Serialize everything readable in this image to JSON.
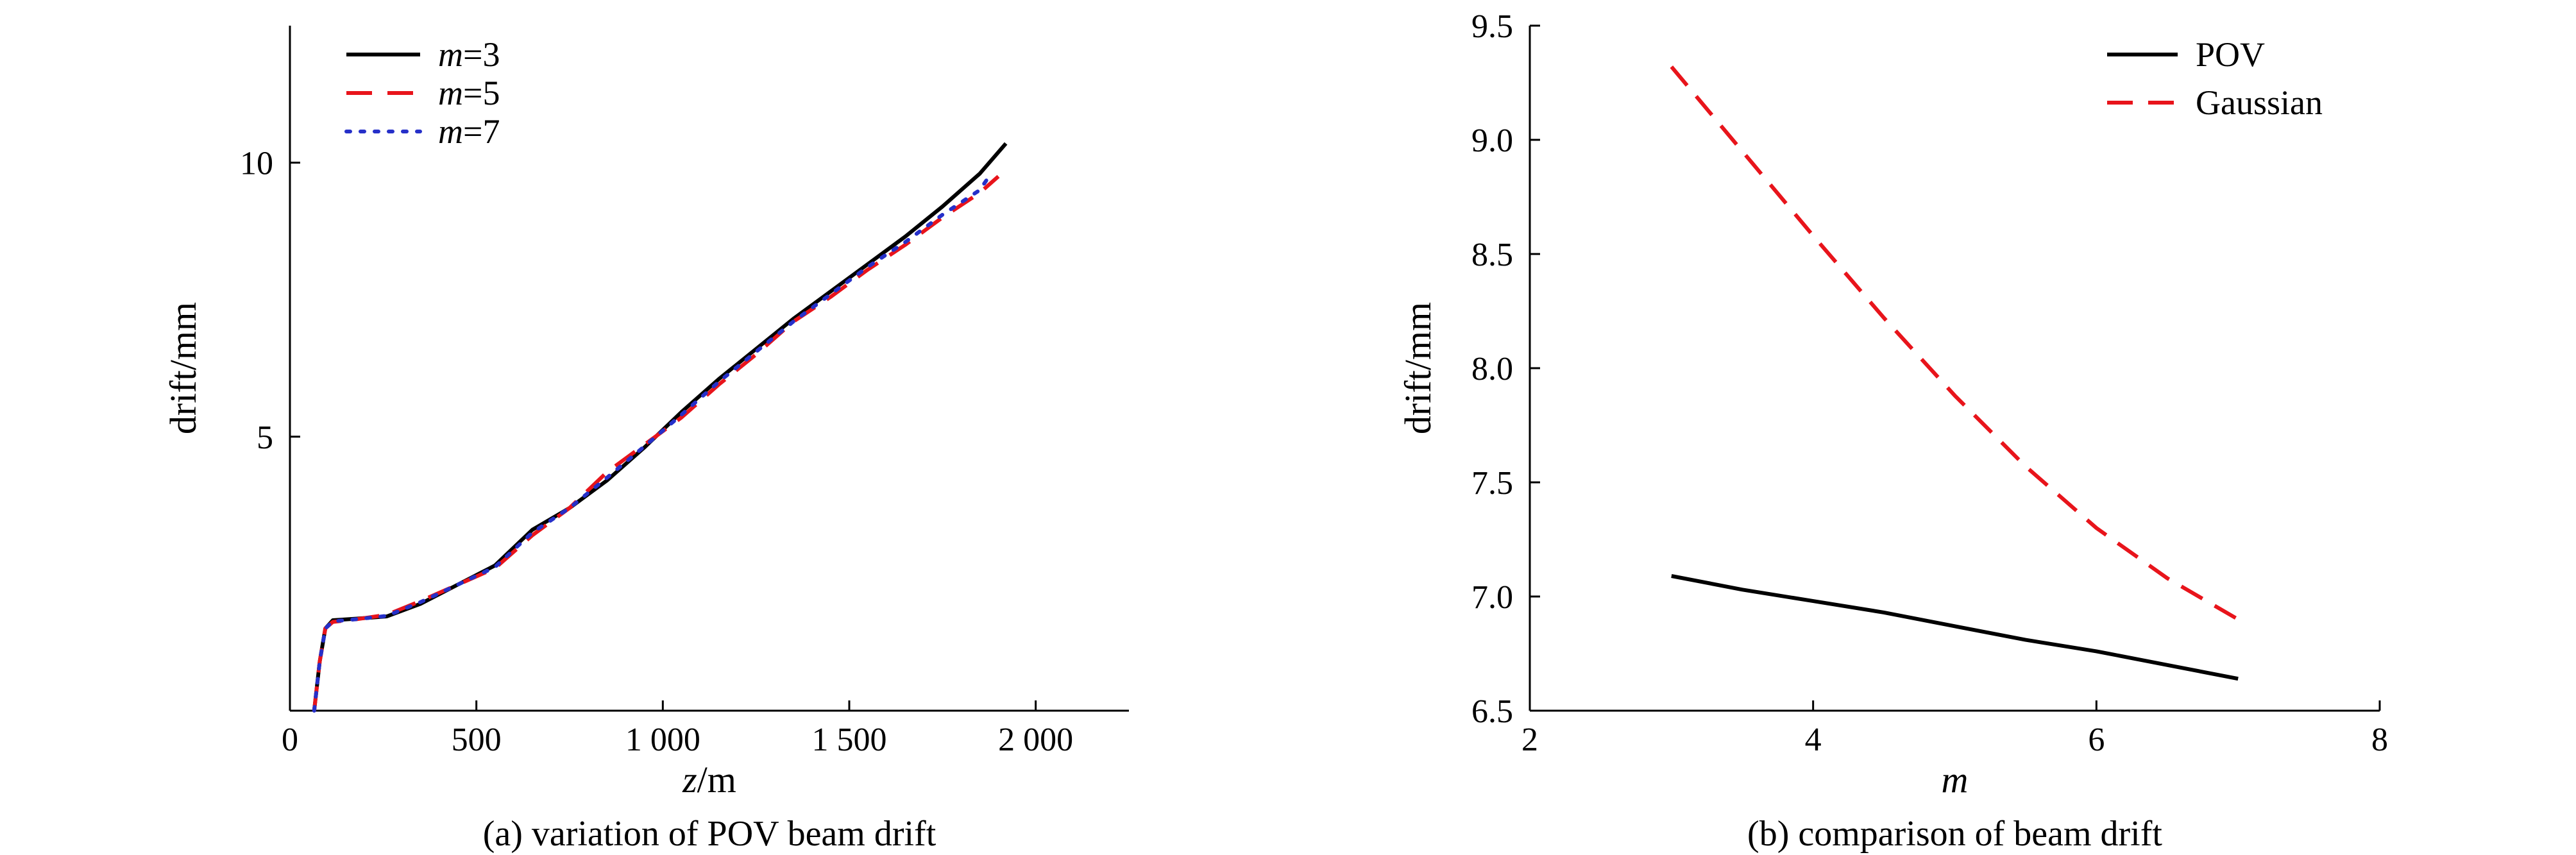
{
  "chart_data": [
    {
      "type": "line",
      "caption": "(a) variation of POV beam drift",
      "xlabel": {
        "italic": "z",
        "rest": "/m"
      },
      "ylabel": "drift/mm",
      "xlim": [
        0,
        2250
      ],
      "ylim": [
        0,
        12.5
      ],
      "xticks": [
        0,
        500,
        1000,
        1500,
        2000
      ],
      "xtick_labels": [
        "0",
        "500",
        "1 000",
        "1 500",
        "2 000"
      ],
      "yticks": [
        5,
        10
      ],
      "ytick_labels": [
        "5",
        "10"
      ],
      "legend_position": "top-left",
      "series": [
        {
          "name": "m=3",
          "name_italic": "m",
          "name_rest": "=3",
          "color": "#000000",
          "dash": "solid",
          "points": [
            [
              65,
              0
            ],
            [
              80,
              0.9
            ],
            [
              95,
              1.5
            ],
            [
              115,
              1.65
            ],
            [
              180,
              1.68
            ],
            [
              260,
              1.72
            ],
            [
              350,
              1.95
            ],
            [
              450,
              2.3
            ],
            [
              550,
              2.65
            ],
            [
              650,
              3.3
            ],
            [
              750,
              3.7
            ],
            [
              850,
              4.2
            ],
            [
              950,
              4.8
            ],
            [
              1050,
              5.45
            ],
            [
              1150,
              6.05
            ],
            [
              1250,
              6.6
            ],
            [
              1350,
              7.15
            ],
            [
              1450,
              7.65
            ],
            [
              1550,
              8.15
            ],
            [
              1650,
              8.65
            ],
            [
              1750,
              9.2
            ],
            [
              1850,
              9.8
            ],
            [
              1920,
              10.35
            ]
          ]
        },
        {
          "name": "m=5",
          "name_italic": "m",
          "name_rest": "=5",
          "color": "#e8141b",
          "dash": "dashed",
          "points": [
            [
              65,
              0
            ],
            [
              80,
              0.9
            ],
            [
              95,
              1.5
            ],
            [
              115,
              1.62
            ],
            [
              180,
              1.67
            ],
            [
              260,
              1.75
            ],
            [
              350,
              2.0
            ],
            [
              450,
              2.3
            ],
            [
              550,
              2.6
            ],
            [
              650,
              3.2
            ],
            [
              750,
              3.7
            ],
            [
              850,
              4.35
            ],
            [
              950,
              4.85
            ],
            [
              1050,
              5.35
            ],
            [
              1150,
              5.95
            ],
            [
              1250,
              6.5
            ],
            [
              1350,
              7.1
            ],
            [
              1450,
              7.55
            ],
            [
              1550,
              8.05
            ],
            [
              1650,
              8.5
            ],
            [
              1750,
              9.0
            ],
            [
              1850,
              9.45
            ],
            [
              1900,
              9.75
            ]
          ]
        },
        {
          "name": "m=7",
          "name_italic": "m",
          "name_rest": "=7",
          "color": "#2630c9",
          "dash": "dotted",
          "points": [
            [
              65,
              0
            ],
            [
              80,
              0.9
            ],
            [
              95,
              1.5
            ],
            [
              115,
              1.63
            ],
            [
              180,
              1.67
            ],
            [
              260,
              1.73
            ],
            [
              350,
              1.98
            ],
            [
              450,
              2.3
            ],
            [
              550,
              2.62
            ],
            [
              650,
              3.25
            ],
            [
              750,
              3.7
            ],
            [
              850,
              4.25
            ],
            [
              950,
              4.82
            ],
            [
              1050,
              5.4
            ],
            [
              1150,
              6.0
            ],
            [
              1250,
              6.55
            ],
            [
              1350,
              7.1
            ],
            [
              1450,
              7.6
            ],
            [
              1550,
              8.1
            ],
            [
              1650,
              8.55
            ],
            [
              1750,
              9.05
            ],
            [
              1850,
              9.5
            ],
            [
              1880,
              9.8
            ]
          ]
        }
      ]
    },
    {
      "type": "line",
      "caption": "(b) comparison of beam drift",
      "xlabel": {
        "italic": "m",
        "rest": ""
      },
      "ylabel": "drift/mm",
      "xlim": [
        2,
        8
      ],
      "ylim": [
        6.5,
        9.5
      ],
      "xticks": [
        2,
        4,
        6,
        8
      ],
      "xtick_labels": [
        "2",
        "4",
        "6",
        "8"
      ],
      "yticks": [
        6.5,
        7.0,
        7.5,
        8.0,
        8.5,
        9.0,
        9.5
      ],
      "ytick_labels": [
        "6.5",
        "7.0",
        "7.5",
        "8.0",
        "8.5",
        "9.0",
        "9.5"
      ],
      "legend_position": "top-right",
      "series": [
        {
          "name": "POV",
          "name_italic": "",
          "name_rest": "POV",
          "color": "#000000",
          "dash": "solid",
          "points": [
            [
              3,
              7.09
            ],
            [
              3.5,
              7.03
            ],
            [
              4,
              6.98
            ],
            [
              4.5,
              6.93
            ],
            [
              5,
              6.87
            ],
            [
              5.5,
              6.81
            ],
            [
              6,
              6.76
            ],
            [
              6.5,
              6.7
            ],
            [
              7,
              6.64
            ]
          ]
        },
        {
          "name": "Gaussian",
          "name_italic": "",
          "name_rest": "Gaussian",
          "color": "#e8141b",
          "dash": "dashed",
          "points": [
            [
              3,
              9.32
            ],
            [
              3.5,
              8.95
            ],
            [
              4,
              8.58
            ],
            [
              4.5,
              8.22
            ],
            [
              5,
              7.88
            ],
            [
              5.5,
              7.57
            ],
            [
              6,
              7.3
            ],
            [
              6.5,
              7.08
            ],
            [
              7,
              6.9
            ]
          ]
        }
      ]
    }
  ]
}
